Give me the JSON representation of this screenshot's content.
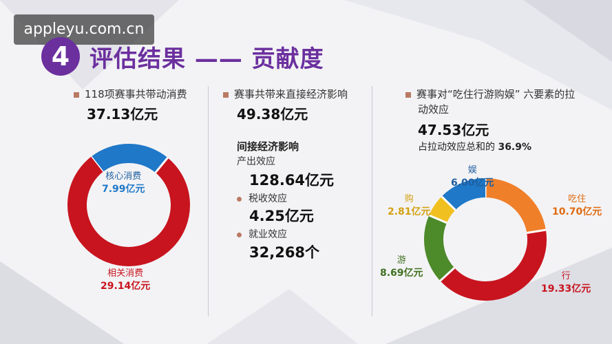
{
  "watermark": "appleyu.com.cn",
  "header": {
    "number": "4",
    "title": "评估结果 —— 贡献度"
  },
  "col1": {
    "label": "118项赛事共带动消费",
    "total": "37.13亿元",
    "segments": [
      {
        "name": "核心消费",
        "value": "7.99亿元",
        "color": "#1f78c8"
      },
      {
        "name": "相关消费",
        "value": "29.14亿元",
        "color": "#c8141e"
      }
    ]
  },
  "col2": {
    "direct_label": "赛事共带来直接经济影响",
    "direct_value": "49.38亿元",
    "indirect_label": "间接经济影响",
    "output_label": "产出效应",
    "output_value": "128.64亿元",
    "tax_label": "税收效应",
    "tax_value": "4.25亿元",
    "job_label": "就业效应",
    "job_value": "32,268个"
  },
  "col3": {
    "label_line1": "赛事对“吃住行游购娱” 六要素的拉",
    "label_line2": "动效应",
    "total": "47.53亿元",
    "share_prefix": "占拉动效应总和的",
    "share_value": "36.9%",
    "segments": [
      {
        "name": "吃住",
        "value": "10.70亿元",
        "color": "#f07f2a"
      },
      {
        "name": "行",
        "value": "19.33亿元",
        "color": "#c8141e"
      },
      {
        "name": "游",
        "value": "8.69亿元",
        "color": "#4d8a2a"
      },
      {
        "name": "购",
        "value": "2.81亿元",
        "color": "#f0c020"
      },
      {
        "name": "娱",
        "value": "6.00亿元",
        "color": "#1f78c8"
      }
    ]
  },
  "chart_data": [
    {
      "type": "pie",
      "title": "",
      "categories": [
        "核心消费",
        "相关消费"
      ],
      "values": [
        7.99,
        29.14
      ],
      "unit": "亿元"
    },
    {
      "type": "pie",
      "title": "",
      "categories": [
        "吃住",
        "行",
        "游",
        "购",
        "娱"
      ],
      "values": [
        10.7,
        19.33,
        8.69,
        2.81,
        6.0
      ],
      "unit": "亿元"
    }
  ]
}
